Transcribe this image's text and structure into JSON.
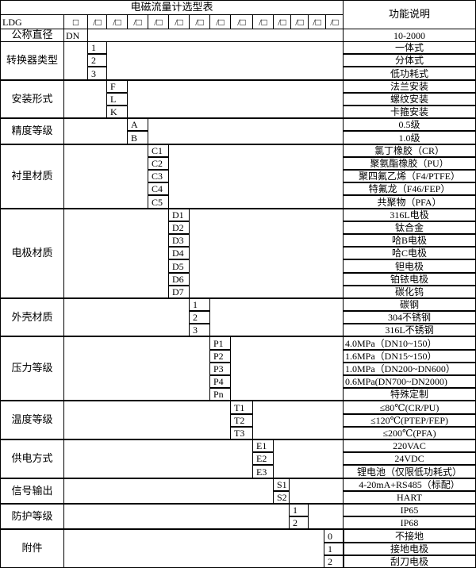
{
  "title": "电磁流量计选型表",
  "function_header": "功能说明",
  "model_row": {
    "prefix": "LDG",
    "first_box": "□",
    "boxes": [
      "/□",
      "/□",
      "/□",
      "/□",
      "/□",
      "/□",
      "/□",
      "/□",
      "/□",
      "/□",
      "/□",
      "/□",
      "/□"
    ]
  },
  "nominal_diameter": {
    "label": "公称直径",
    "code": "DN",
    "description": "10-2000"
  },
  "groups": [
    {
      "label": "转换器类型",
      "items": [
        {
          "code": "1",
          "desc": "一体式"
        },
        {
          "code": "2",
          "desc": "分体式"
        },
        {
          "code": "3",
          "desc": "低功耗式"
        }
      ]
    },
    {
      "label": "安装形式",
      "items": [
        {
          "code": "F",
          "desc": "法兰安装"
        },
        {
          "code": "L",
          "desc": "螺纹安装"
        },
        {
          "code": "K",
          "desc": "卡箍安装"
        }
      ]
    },
    {
      "label": "精度等级",
      "items": [
        {
          "code": "A",
          "desc": "0.5级"
        },
        {
          "code": "B",
          "desc": "1.0级"
        }
      ]
    },
    {
      "label": "衬里材质",
      "items": [
        {
          "code": "C1",
          "desc": "氯丁橡胶（CR）"
        },
        {
          "code": "C2",
          "desc": "聚氨酯橡胶（PU）"
        },
        {
          "code": "C3",
          "desc": "聚四氟乙烯（F4/PTFE）"
        },
        {
          "code": "C4",
          "desc": "特氟龙（F46/FEP）"
        },
        {
          "code": "C5",
          "desc": "共聚物（PFA）"
        }
      ]
    },
    {
      "label": "电极材质",
      "items": [
        {
          "code": "D1",
          "desc": "316L电极"
        },
        {
          "code": "D2",
          "desc": "钛合金"
        },
        {
          "code": "D3",
          "desc": "哈B电极"
        },
        {
          "code": "D4",
          "desc": "哈C电极"
        },
        {
          "code": "D5",
          "desc": "钽电极"
        },
        {
          "code": "D6",
          "desc": "铂铱电极"
        },
        {
          "code": "D7",
          "desc": "碳化钨"
        }
      ]
    },
    {
      "label": "外壳材质",
      "items": [
        {
          "code": "1",
          "desc": "碳钢"
        },
        {
          "code": "2",
          "desc": "304不锈钢"
        },
        {
          "code": "3",
          "desc": "316L不锈钢"
        }
      ]
    },
    {
      "label": "压力等级",
      "align": "left",
      "items": [
        {
          "code": "P1",
          "desc": "4.0MPa（DN10~150）"
        },
        {
          "code": "P2",
          "desc": "1.6MPa（DN15~150）"
        },
        {
          "code": "P3",
          "desc": "1.0MPa（DN200~DN600）"
        },
        {
          "code": "P4",
          "desc": "0.6MPa(DN700~DN2000)"
        },
        {
          "code": "Pn",
          "desc": "特殊定制",
          "align": "center"
        }
      ]
    },
    {
      "label": "温度等级",
      "items": [
        {
          "code": "T1",
          "desc": "≤80℃(CR/PU)"
        },
        {
          "code": "T2",
          "desc": "≤120℃(PTEP/FEP)"
        },
        {
          "code": "T3",
          "desc": "≤200℃(PFA)"
        }
      ]
    },
    {
      "label": "供电方式",
      "items": [
        {
          "code": "E1",
          "desc": "220VAC"
        },
        {
          "code": "E2",
          "desc": "24VDC"
        },
        {
          "code": "E3",
          "desc": "锂电池（仅限低功耗式）"
        }
      ]
    },
    {
      "label": "信号输出",
      "items": [
        {
          "code": "S1",
          "desc": "4-20mA+RS485（标配）"
        },
        {
          "code": "S2",
          "desc": "HART"
        }
      ]
    },
    {
      "label": "防护等级",
      "items": [
        {
          "code": "1",
          "desc": "IP65"
        },
        {
          "code": "2",
          "desc": "IP68"
        }
      ]
    },
    {
      "label": "附件",
      "items": [
        {
          "code": "0",
          "desc": "不接地"
        },
        {
          "code": "1",
          "desc": "接地电极"
        },
        {
          "code": "2",
          "desc": "刮刀电极"
        }
      ]
    }
  ]
}
